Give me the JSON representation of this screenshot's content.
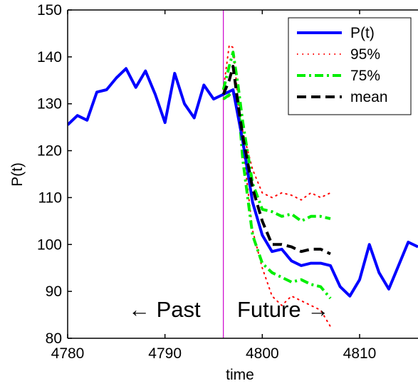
{
  "chart_data": {
    "type": "line",
    "xlabel": "time",
    "ylabel": "P(t)",
    "xlim": [
      4780,
      4816
    ],
    "ylim": [
      80,
      150
    ],
    "x_ticks": [
      4780,
      4790,
      4800,
      4810
    ],
    "y_ticks": [
      80,
      90,
      100,
      110,
      120,
      130,
      140,
      150
    ],
    "grid": false,
    "legend_position": "top-right",
    "divider_x": 4796,
    "divider_color": "#cc00cc",
    "annotations": {
      "past": "← Past",
      "future": "Future →"
    },
    "series": [
      {
        "name": "P(t)",
        "color": "#0000ff",
        "style": "solid",
        "x": [
          4780,
          4781,
          4782,
          4783,
          4784,
          4785,
          4786,
          4787,
          4788,
          4789,
          4790,
          4791,
          4792,
          4793,
          4794,
          4795,
          4796,
          4797,
          4798,
          4799,
          4800,
          4801,
          4802,
          4803,
          4804,
          4805,
          4806,
          4807,
          4808,
          4809,
          4810,
          4811,
          4812,
          4813,
          4814,
          4815,
          4816
        ],
        "y": [
          125.5,
          127.5,
          126.5,
          132.5,
          133,
          135.5,
          137.5,
          133.5,
          137,
          132,
          126,
          136.5,
          130,
          127,
          134,
          131,
          132,
          133,
          122,
          109,
          102,
          98.5,
          99,
          96.5,
          95.5,
          96,
          96,
          95.5,
          91,
          89,
          92.5,
          100,
          94,
          90.5,
          95.5,
          100.5,
          99.5
        ]
      },
      {
        "name": "95%",
        "color": "#ff0000",
        "style": "dotted",
        "upper": {
          "x": [
            4796,
            4796.6,
            4797,
            4797.5,
            4798,
            4799,
            4800,
            4801,
            4802,
            4803,
            4804,
            4805,
            4806,
            4807
          ],
          "y": [
            133,
            142.5,
            142,
            131,
            124,
            116,
            111,
            110,
            111,
            110.5,
            109.5,
            111,
            110,
            111
          ]
        },
        "lower": {
          "x": [
            4796,
            4797,
            4797.5,
            4798,
            4799,
            4800,
            4801,
            4802,
            4803,
            4804,
            4805,
            4806,
            4807
          ],
          "y": [
            131,
            132,
            129,
            121,
            103,
            95,
            89,
            87,
            89,
            88,
            87,
            86,
            82.5
          ]
        }
      },
      {
        "name": "75%",
        "color": "#00ee00",
        "style": "dashdot",
        "upper": {
          "x": [
            4796,
            4796.6,
            4797,
            4797.5,
            4798,
            4799,
            4800,
            4801,
            4802,
            4803,
            4804,
            4805,
            4806,
            4807
          ],
          "y": [
            133,
            138,
            141,
            134,
            126,
            113,
            107.5,
            107,
            106,
            106.5,
            105,
            106,
            106,
            105.5
          ]
        },
        "lower": {
          "x": [
            4796,
            4797,
            4797.5,
            4798,
            4799,
            4800,
            4801,
            4802,
            4803,
            4804,
            4805,
            4806,
            4807
          ],
          "y": [
            131,
            132.5,
            131,
            118,
            102,
            96,
            94,
            93,
            92,
            92.5,
            91.5,
            91,
            88.5
          ]
        }
      },
      {
        "name": "mean",
        "color": "#000000",
        "style": "dashed",
        "x": [
          4796,
          4796.6,
          4797,
          4797.5,
          4798,
          4799,
          4800,
          4801,
          4802,
          4803,
          4804,
          4805,
          4806,
          4807
        ],
        "y": [
          132,
          135,
          138,
          130,
          123,
          112,
          105,
          100,
          100,
          99.5,
          98.5,
          99,
          99,
          98
        ]
      }
    ]
  }
}
